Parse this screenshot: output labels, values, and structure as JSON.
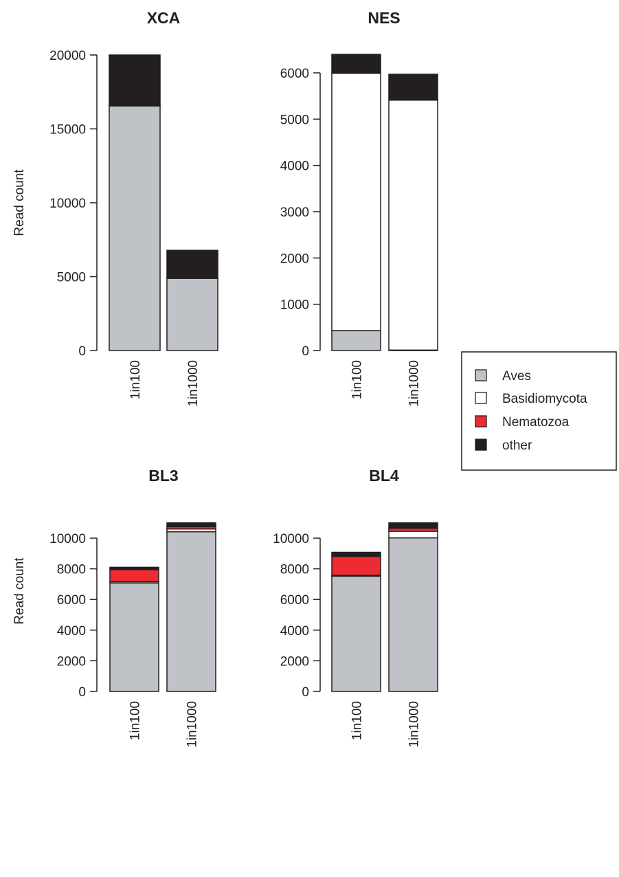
{
  "legend": {
    "entries": [
      {
        "label": "Aves",
        "color": "#bfc3c8"
      },
      {
        "label": "Basidiomycota",
        "color": "#ffffff"
      },
      {
        "label": "Nematozoa",
        "color": "#ed2b30"
      },
      {
        "label": "other",
        "color": "#231f20"
      }
    ]
  },
  "chart_data": [
    {
      "type": "bar",
      "stacked": true,
      "title": "XCA",
      "ylabel": "Read count",
      "categories": [
        "1in100",
        "1in1000"
      ],
      "yticks": [
        0,
        5000,
        10000,
        15000,
        20000
      ],
      "ylim": [
        0,
        20000
      ],
      "series": [
        {
          "name": "Aves",
          "values": [
            16550,
            4880
          ]
        },
        {
          "name": "Basidiomycota",
          "values": [
            0,
            0
          ]
        },
        {
          "name": "Nematozoa",
          "values": [
            50,
            0
          ]
        },
        {
          "name": "other",
          "values": [
            3400,
            1900
          ]
        }
      ]
    },
    {
      "type": "bar",
      "stacked": true,
      "title": "NES",
      "ylabel": "",
      "categories": [
        "1in100",
        "1in1000"
      ],
      "yticks": [
        0,
        1000,
        2000,
        3000,
        4000,
        5000,
        6000
      ],
      "ylim": [
        0,
        6400
      ],
      "series": [
        {
          "name": "Aves",
          "values": [
            430,
            10
          ]
        },
        {
          "name": "Basidiomycota",
          "values": [
            5560,
            5400
          ]
        },
        {
          "name": "Nematozoa",
          "values": [
            0,
            0
          ]
        },
        {
          "name": "other",
          "values": [
            410,
            560
          ]
        }
      ]
    },
    {
      "type": "bar",
      "stacked": true,
      "title": "BL3",
      "ylabel": "Read count",
      "categories": [
        "1in100",
        "1in1000"
      ],
      "yticks": [
        0,
        2000,
        4000,
        6000,
        8000,
        10000
      ],
      "ylim": [
        0,
        11000
      ],
      "series": [
        {
          "name": "Aves",
          "values": [
            7080,
            10420
          ]
        },
        {
          "name": "Basidiomycota",
          "values": [
            80,
            180
          ]
        },
        {
          "name": "Nematozoa",
          "values": [
            790,
            150
          ]
        },
        {
          "name": "other",
          "values": [
            150,
            250
          ]
        }
      ]
    },
    {
      "type": "bar",
      "stacked": true,
      "title": "BL4",
      "ylabel": "",
      "categories": [
        "1in100",
        "1in1000"
      ],
      "yticks": [
        0,
        2000,
        4000,
        6000,
        8000,
        10000
      ],
      "ylim": [
        0,
        11000
      ],
      "series": [
        {
          "name": "Aves",
          "values": [
            7520,
            10020
          ]
        },
        {
          "name": "Basidiomycota",
          "values": [
            60,
            430
          ]
        },
        {
          "name": "Nematozoa",
          "values": [
            1230,
            200
          ]
        },
        {
          "name": "other",
          "values": [
            270,
            350
          ]
        }
      ]
    }
  ]
}
